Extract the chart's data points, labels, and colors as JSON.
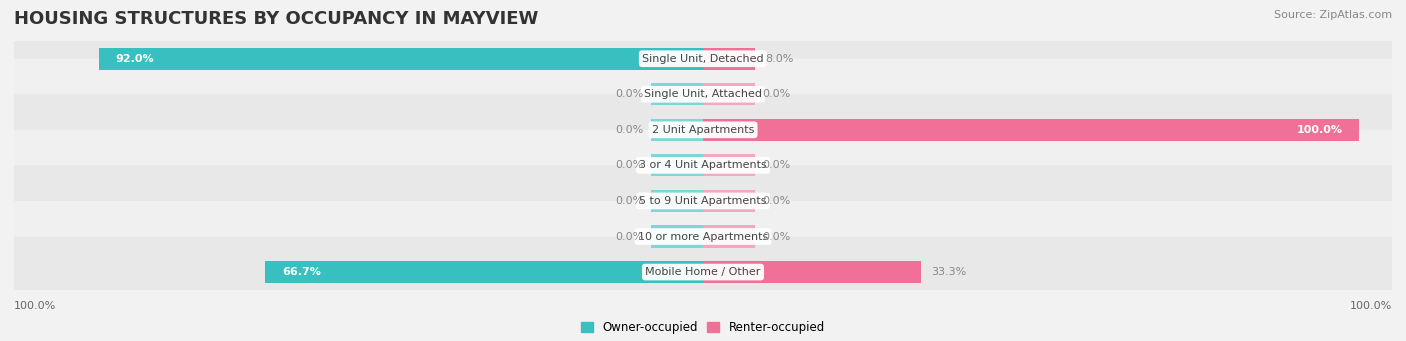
{
  "title": "HOUSING STRUCTURES BY OCCUPANCY IN MAYVIEW",
  "source": "Source: ZipAtlas.com",
  "categories": [
    "Single Unit, Detached",
    "Single Unit, Attached",
    "2 Unit Apartments",
    "3 or 4 Unit Apartments",
    "5 to 9 Unit Apartments",
    "10 or more Apartments",
    "Mobile Home / Other"
  ],
  "owner_pct": [
    92.0,
    0.0,
    0.0,
    0.0,
    0.0,
    0.0,
    66.7
  ],
  "renter_pct": [
    8.0,
    0.0,
    100.0,
    0.0,
    0.0,
    0.0,
    33.3
  ],
  "owner_color": "#38bfbf",
  "renter_color": "#f07098",
  "renter_stub_color": "#f4a8c0",
  "owner_stub_color": "#7fd6d6",
  "bg_color": "#f2f2f2",
  "row_bg_even": "#e8e8e8",
  "row_bg_odd": "#f0f0f0",
  "axis_label_left": "100.0%",
  "axis_label_right": "100.0%",
  "bar_height": 0.62,
  "title_fontsize": 13,
  "label_fontsize": 8.0,
  "cat_fontsize": 8.0,
  "legend_fontsize": 8.5,
  "source_fontsize": 8,
  "xlim": 105,
  "stub_size": 8.0
}
